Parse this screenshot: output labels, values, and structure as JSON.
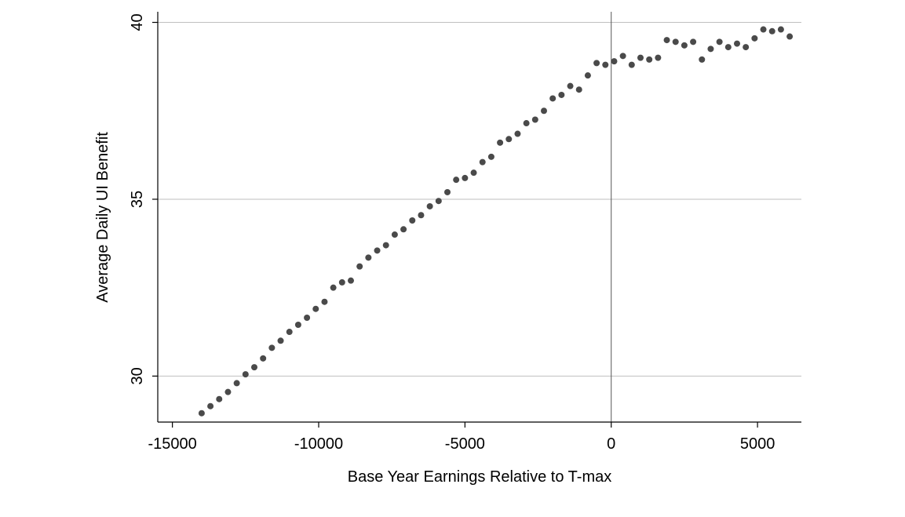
{
  "chart_data": {
    "type": "scatter",
    "xlabel": "Base Year Earnings Relative to T-max",
    "ylabel": "Average Daily UI Benefit",
    "xlim": [
      -15500,
      6500
    ],
    "ylim": [
      28.7,
      40.3
    ],
    "xticks": [
      -15000,
      -10000,
      -5000,
      0,
      5000
    ],
    "yticks": [
      30,
      35,
      40
    ],
    "grid": "horizontal",
    "reference_line_x": 0,
    "marker_color": "#4a4a4a",
    "grid_color": "#bfbfbf",
    "series": [
      {
        "x": [
          -14000,
          -13700,
          -13400,
          -13100,
          -12800,
          -12500,
          -12200,
          -11900,
          -11600,
          -11300,
          -11000,
          -10700,
          -10400,
          -10100,
          -9800,
          -9500,
          -9200,
          -8900,
          -8600,
          -8300,
          -8000,
          -7700,
          -7400,
          -7100,
          -6800,
          -6500,
          -6200,
          -5900,
          -5600,
          -5300,
          -5000,
          -4700,
          -4400,
          -4100,
          -3800,
          -3500,
          -3200,
          -2900,
          -2600,
          -2300,
          -2000,
          -1700,
          -1400,
          -1100,
          -800,
          -500,
          -200,
          100,
          400,
          700,
          1000,
          1300,
          1600,
          1900,
          2200,
          2500,
          2800,
          3100,
          3400,
          3700,
          4000,
          4300,
          4600,
          4900,
          5200,
          5500,
          5800,
          6100
        ],
        "y": [
          28.95,
          29.15,
          29.35,
          29.55,
          29.8,
          30.05,
          30.25,
          30.5,
          30.8,
          31.0,
          31.25,
          31.45,
          31.65,
          31.9,
          32.1,
          32.5,
          32.65,
          32.7,
          33.1,
          33.35,
          33.55,
          33.7,
          34.0,
          34.15,
          34.4,
          34.55,
          34.8,
          34.95,
          35.2,
          35.55,
          35.6,
          35.75,
          36.05,
          36.2,
          36.6,
          36.7,
          36.85,
          37.15,
          37.25,
          37.5,
          37.85,
          37.95,
          38.2,
          38.1,
          38.5,
          38.85,
          38.8,
          38.9,
          39.05,
          38.8,
          39.0,
          38.95,
          39.0,
          39.5,
          39.45,
          39.35,
          39.45,
          38.95,
          39.25,
          39.45,
          39.3,
          39.4,
          39.3,
          39.55,
          39.8,
          39.75,
          39.8,
          39.6
        ]
      }
    ]
  }
}
